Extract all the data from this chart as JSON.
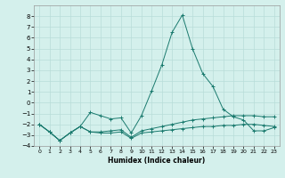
{
  "xlabel": "Humidex (Indice chaleur)",
  "x": [
    0,
    1,
    2,
    3,
    4,
    5,
    6,
    7,
    8,
    9,
    10,
    11,
    12,
    13,
    14,
    15,
    16,
    17,
    18,
    19,
    20,
    21,
    22,
    23
  ],
  "series1": [
    -2,
    -2.7,
    -3.5,
    -2.8,
    -2.2,
    -0.9,
    -1.2,
    -1.5,
    -1.4,
    -2.8,
    -1.2,
    1.1,
    3.5,
    6.5,
    8.1,
    5.0,
    2.7,
    1.5,
    -0.6,
    -1.3,
    -1.6,
    -2.6,
    -2.6,
    -2.3
  ],
  "series2": [
    -2,
    -2.7,
    -3.5,
    -2.8,
    -2.2,
    -2.7,
    -2.7,
    -2.6,
    -2.5,
    -3.2,
    -2.6,
    -2.4,
    -2.2,
    -2.0,
    -1.8,
    -1.6,
    -1.5,
    -1.4,
    -1.3,
    -1.2,
    -1.2,
    -1.2,
    -1.3,
    -1.3
  ],
  "series3": [
    -2,
    -2.7,
    -3.5,
    -2.8,
    -2.2,
    -2.7,
    -2.8,
    -2.8,
    -2.7,
    -3.3,
    -2.8,
    -2.7,
    -2.6,
    -2.5,
    -2.4,
    -2.3,
    -2.2,
    -2.2,
    -2.1,
    -2.1,
    -2.0,
    -2.0,
    -2.1,
    -2.2
  ],
  "line_color": "#1a7a6e",
  "bg_color": "#d4f0ec",
  "grid_color": "#b8ddd8",
  "ylim": [
    -4,
    9
  ],
  "yticks": [
    -4,
    -3,
    -2,
    -1,
    0,
    1,
    2,
    3,
    4,
    5,
    6,
    7,
    8
  ],
  "xticks": [
    0,
    1,
    2,
    3,
    4,
    5,
    6,
    7,
    8,
    9,
    10,
    11,
    12,
    13,
    14,
    15,
    16,
    17,
    18,
    19,
    20,
    21,
    22,
    23
  ]
}
